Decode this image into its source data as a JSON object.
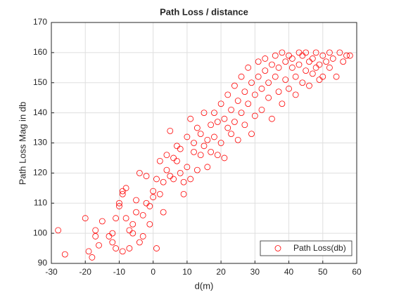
{
  "chart_data": {
    "type": "scatter",
    "title": "Path Loss / distance",
    "xlabel": "d(m)",
    "ylabel": "Path Loss Mag in db",
    "series": [
      {
        "name": "Path Loss(db)",
        "color": "#ff0000",
        "x": [
          -28,
          -26,
          -20,
          -19,
          -18,
          -17,
          -17,
          -16,
          -15,
          -13,
          -12,
          -12,
          -11,
          -11,
          -10,
          -10,
          -9,
          -9,
          -8,
          -8,
          -9,
          -7,
          -7,
          -6,
          -6,
          -5,
          -5,
          -4,
          -4,
          -3,
          -3,
          -2,
          -2,
          -1,
          -1,
          0,
          0,
          1,
          1,
          2,
          2,
          3,
          3,
          4,
          4,
          5,
          5,
          6,
          6,
          7,
          7,
          8,
          8,
          9,
          9,
          10,
          10,
          11,
          11,
          12,
          12,
          13,
          13,
          14,
          14,
          15,
          15,
          16,
          16,
          17,
          17,
          18,
          18,
          19,
          19,
          20,
          20,
          21,
          21,
          22,
          22,
          23,
          23,
          24,
          24,
          25,
          25,
          26,
          26,
          27,
          27,
          28,
          28,
          29,
          29,
          30,
          30,
          31,
          31,
          32,
          32,
          33,
          33,
          34,
          34,
          35,
          35,
          36,
          36,
          37,
          37,
          38,
          38,
          39,
          39,
          40,
          40,
          41,
          41,
          42,
          42,
          43,
          43,
          44,
          44,
          45,
          45,
          46,
          46,
          47,
          47,
          48,
          48,
          49,
          49,
          50,
          50,
          51,
          52,
          52,
          53,
          54,
          55,
          56,
          57,
          58
        ],
        "values": [
          101,
          93,
          105,
          94,
          92,
          101,
          99,
          96,
          104,
          99,
          97,
          100,
          95,
          105,
          110,
          109,
          114,
          113,
          115,
          105,
          94,
          95,
          101,
          100,
          103,
          107,
          111,
          120,
          97,
          99,
          106,
          110,
          119,
          103,
          109,
          114,
          112,
          118,
          95,
          113,
          124,
          117,
          107,
          126,
          121,
          134,
          119,
          118,
          125,
          124,
          129,
          120,
          128,
          117,
          113,
          122,
          132,
          138,
          118,
          130,
          127,
          135,
          121,
          126,
          133,
          140,
          129,
          131,
          122,
          136,
          127,
          140,
          132,
          126,
          137,
          143,
          130,
          138,
          125,
          146,
          135,
          133,
          141,
          149,
          137,
          144,
          131,
          152,
          140,
          136,
          147,
          155,
          143,
          133,
          150,
          146,
          139,
          157,
          152,
          148,
          141,
          158,
          154,
          145,
          150,
          156,
          138,
          159,
          152,
          147,
          155,
          160,
          143,
          157,
          151,
          159,
          148,
          155,
          158,
          152,
          146,
          160,
          156,
          159,
          150,
          160,
          154,
          157,
          149,
          158,
          153,
          160,
          155,
          156,
          151,
          159,
          152,
          157,
          155,
          160,
          158,
          152,
          160,
          157,
          159,
          159
        ]
      }
    ],
    "xlim": [
      -30,
      60
    ],
    "xticks": [
      -30,
      -20,
      -10,
      0,
      10,
      20,
      30,
      40,
      50,
      60
    ],
    "ylim": [
      90,
      170
    ],
    "yticks": [
      90,
      100,
      110,
      120,
      130,
      140,
      150,
      160,
      170
    ],
    "grid": true,
    "legend": "lower right"
  }
}
